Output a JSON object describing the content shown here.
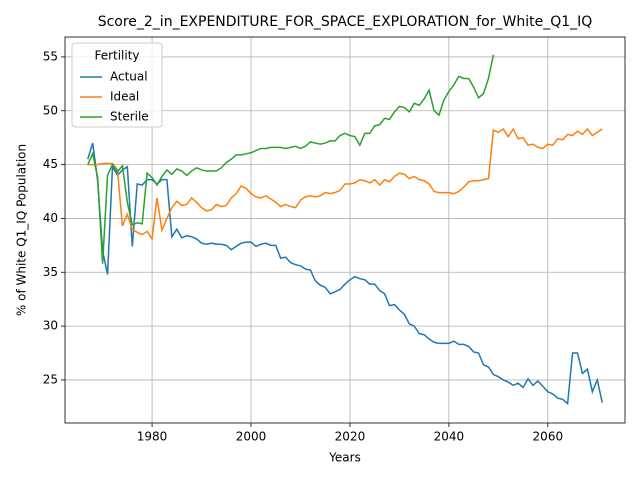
{
  "chart_data": {
    "type": "line",
    "title": "Score_2_in_EXPENDITURE_FOR_SPACE_EXPLORATION_for_White_Q1_IQ",
    "xlabel": "Years",
    "ylabel": "% of White Q1_IQ Population",
    "legend_title": "Fertility",
    "legend": "upper left",
    "grid": true,
    "xlim": [
      1962.4,
      2075.6
    ],
    "ylim": [
      21.0,
      56.85
    ],
    "xticks": [
      1980,
      2000,
      2020,
      2040,
      2060
    ],
    "yticks": [
      25,
      30,
      35,
      40,
      45,
      50,
      55
    ],
    "x": [
      1967,
      1968,
      1969,
      1970,
      1971,
      1972,
      1973,
      1974,
      1975,
      1976,
      1977,
      1978,
      1979,
      1980,
      1981,
      1982,
      1983,
      1984,
      1985,
      1986,
      1987,
      1988,
      1989,
      1990,
      1991,
      1992,
      1993,
      1994,
      1995,
      1996,
      1997,
      1998,
      1999,
      2000,
      2001,
      2002,
      2003,
      2004,
      2005,
      2006,
      2007,
      2008,
      2009,
      2010,
      2011,
      2012,
      2013,
      2014,
      2015,
      2016,
      2017,
      2018,
      2019,
      2020,
      2021,
      2022,
      2023,
      2024,
      2025,
      2026,
      2027,
      2028,
      2029,
      2030,
      2031,
      2032,
      2033,
      2034,
      2035,
      2036,
      2037,
      2038,
      2039,
      2040,
      2041,
      2042,
      2043,
      2044,
      2045,
      2046,
      2047,
      2048,
      2049,
      2050,
      2051,
      2052,
      2053,
      2054,
      2055,
      2056,
      2057,
      2058,
      2059,
      2060,
      2061,
      2062,
      2063,
      2064,
      2065,
      2066,
      2067,
      2068,
      2069,
      2070,
      2071
    ],
    "series": [
      {
        "name": "Actual",
        "color": "#1f77b4",
        "values": [
          45.5,
          47.0,
          43.5,
          37.0,
          34.8,
          44.8,
          44.0,
          44.5,
          44.8,
          37.4,
          43.2,
          43.1,
          43.6,
          43.6,
          43.2,
          43.6,
          43.6,
          38.3,
          39.0,
          38.2,
          38.4,
          38.3,
          38.1,
          37.7,
          37.6,
          37.7,
          37.6,
          37.6,
          37.5,
          37.1,
          37.4,
          37.7,
          37.8,
          37.8,
          37.4,
          37.6,
          37.7,
          37.5,
          37.5,
          36.3,
          36.4,
          35.9,
          35.7,
          35.6,
          35.3,
          35.2,
          34.2,
          33.8,
          33.6,
          33.0,
          33.2,
          33.4,
          33.9,
          34.3,
          34.6,
          34.4,
          34.3,
          33.9,
          33.9,
          33.3,
          33.0,
          31.9,
          32.0,
          31.5,
          31.1,
          30.2,
          30.0,
          29.3,
          29.2,
          28.8,
          28.5,
          28.4,
          28.4,
          28.4,
          28.6,
          28.3,
          28.3,
          28.1,
          27.6,
          27.5,
          26.4,
          26.2,
          25.5,
          25.3,
          25.0,
          24.8,
          24.5,
          24.7,
          24.3,
          25.1,
          24.5,
          24.9,
          24.4,
          23.9,
          23.7,
          23.3,
          23.2,
          22.8,
          27.5,
          27.5,
          25.6,
          26.0,
          23.9,
          25.0,
          22.9
        ]
      },
      {
        "name": "Ideal",
        "color": "#ff7f0e",
        "values": [
          45.0,
          45.0,
          45.0,
          45.1,
          45.1,
          45.1,
          44.5,
          39.3,
          40.4,
          39.0,
          38.7,
          38.5,
          38.8,
          38.1,
          41.9,
          38.9,
          40.0,
          41.0,
          41.6,
          41.2,
          41.3,
          41.9,
          41.5,
          41.0,
          40.7,
          40.8,
          41.3,
          41.1,
          41.2,
          41.9,
          42.3,
          43.0,
          42.8,
          42.3,
          42.0,
          41.9,
          42.1,
          41.8,
          41.5,
          41.1,
          41.3,
          41.1,
          41.0,
          41.7,
          42.0,
          42.1,
          42.0,
          42.1,
          42.4,
          42.3,
          42.4,
          42.6,
          43.2,
          43.2,
          43.3,
          43.6,
          43.5,
          43.3,
          43.6,
          43.1,
          43.6,
          43.4,
          43.9,
          44.2,
          44.1,
          43.7,
          43.9,
          43.6,
          43.5,
          43.2,
          42.5,
          42.4,
          42.4,
          42.4,
          42.3,
          42.5,
          42.9,
          43.4,
          43.5,
          43.5,
          43.6,
          43.7,
          48.2,
          48.0,
          48.3,
          47.6,
          48.3,
          47.4,
          47.5,
          46.8,
          46.9,
          46.6,
          46.5,
          46.9,
          46.8,
          47.4,
          47.3,
          47.8,
          47.7,
          48.1,
          47.8,
          48.3,
          47.7,
          48.0,
          48.3
        ]
      },
      {
        "name": "Sterile",
        "color": "#2ca02c",
        "values": [
          45.0,
          46.0,
          43.8,
          35.8,
          44.0,
          45.0,
          44.3,
          44.9,
          41.5,
          39.4,
          39.6,
          39.5,
          44.2,
          43.8,
          43.1,
          43.9,
          44.5,
          44.1,
          44.6,
          44.4,
          44.0,
          44.4,
          44.7,
          44.5,
          44.4,
          44.4,
          44.4,
          44.7,
          45.2,
          45.5,
          45.9,
          45.9,
          46.0,
          46.1,
          46.3,
          46.5,
          46.5,
          46.6,
          46.6,
          46.6,
          46.5,
          46.6,
          46.7,
          46.5,
          46.7,
          47.1,
          47.0,
          46.9,
          47.0,
          47.2,
          47.2,
          47.7,
          47.9,
          47.7,
          47.6,
          46.8,
          47.9,
          47.9,
          48.6,
          48.7,
          49.3,
          49.2,
          49.9,
          50.4,
          50.3,
          49.9,
          50.7,
          50.5,
          51.1,
          51.9,
          50.0,
          49.6,
          51.0,
          51.8,
          52.4,
          53.2,
          53.0,
          53.0,
          52.2,
          51.2,
          51.6,
          53.0,
          55.2,
          null,
          null,
          null,
          null,
          null,
          null,
          null,
          null,
          null,
          null,
          null,
          null,
          null,
          null,
          null,
          null,
          null,
          null,
          null,
          null,
          null,
          null
        ]
      }
    ]
  }
}
